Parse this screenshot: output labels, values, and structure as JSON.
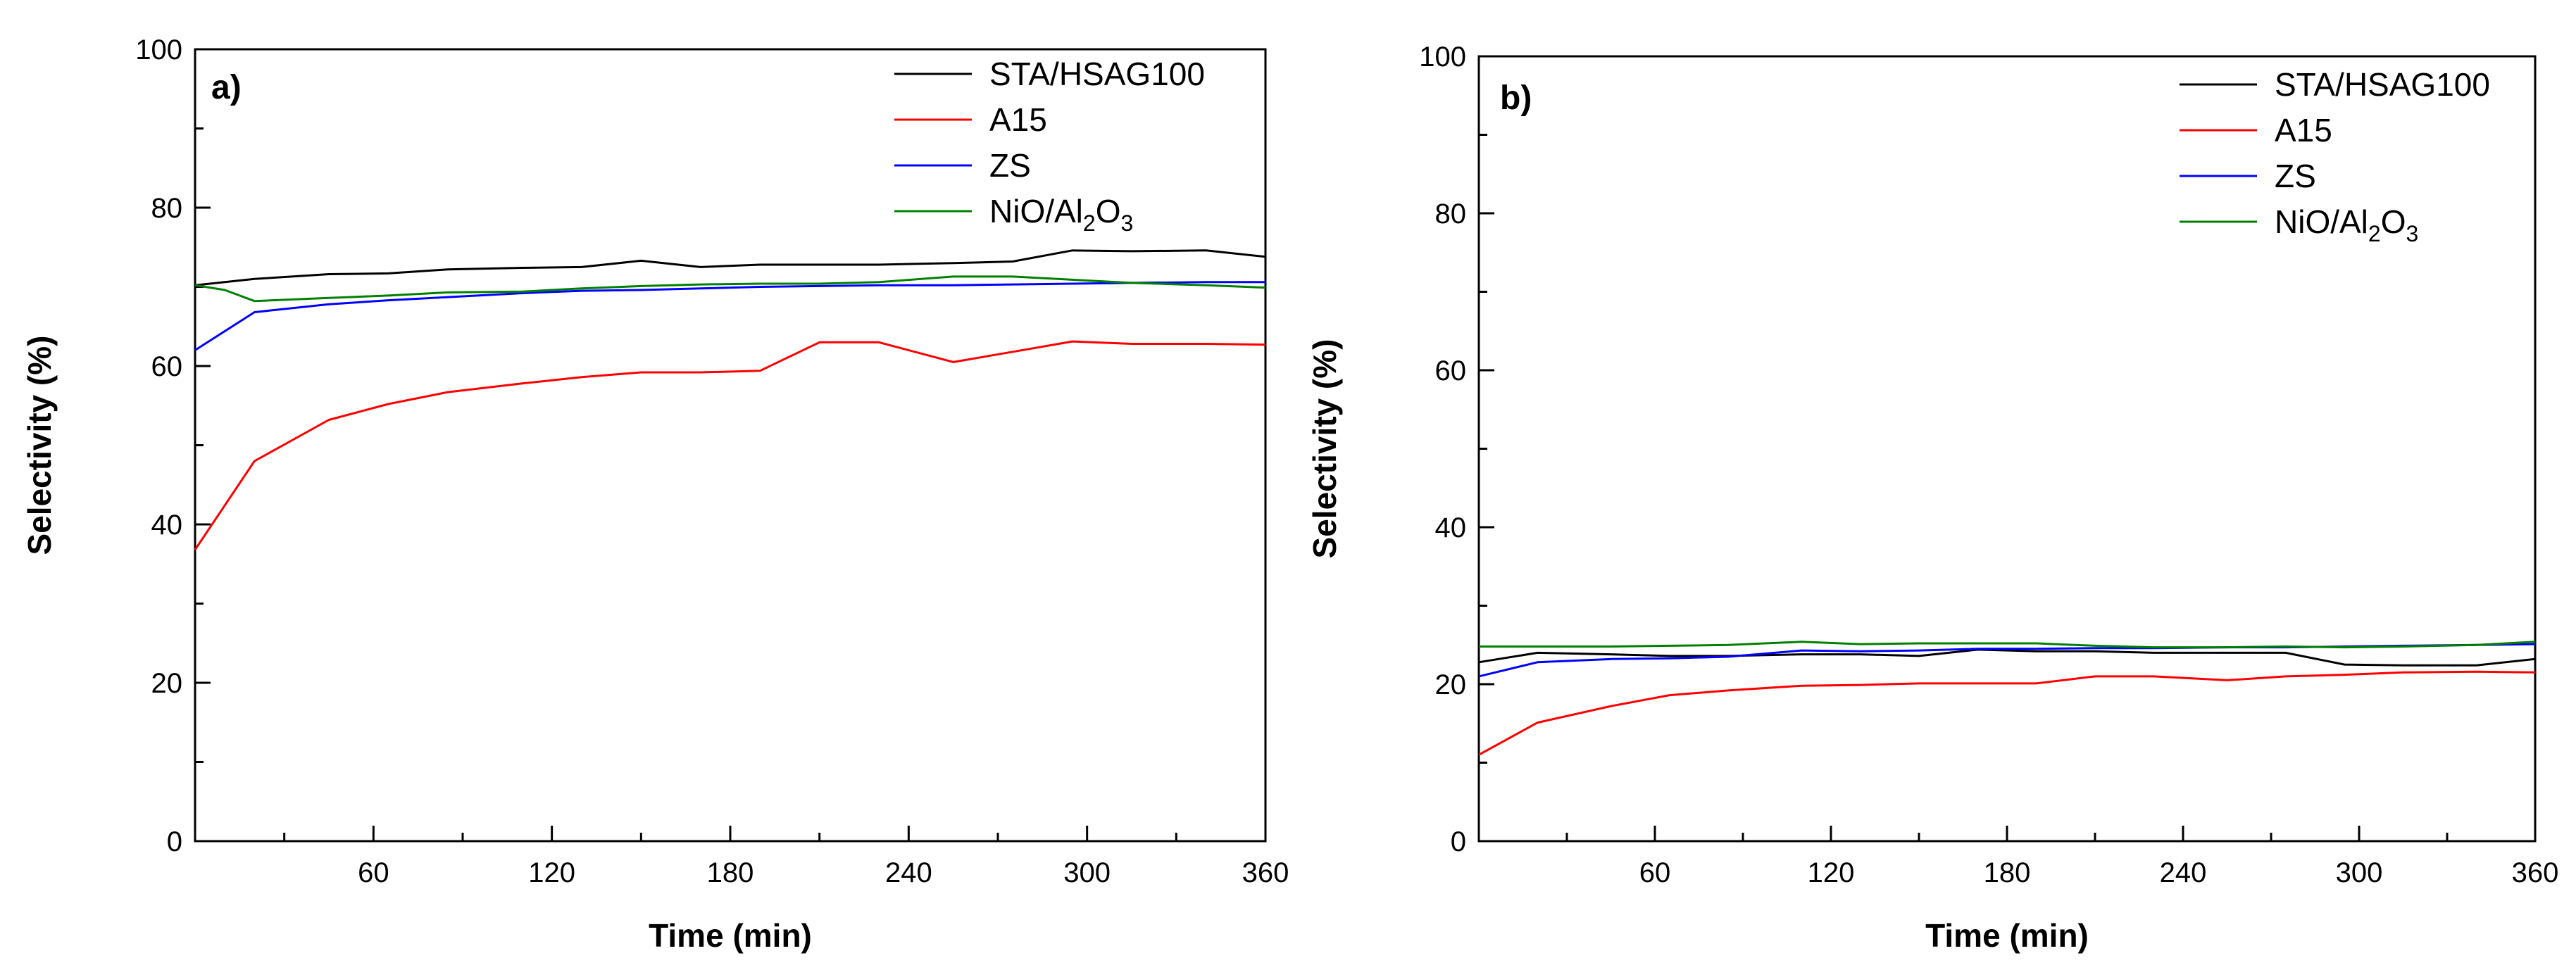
{
  "chart_data": [
    {
      "type": "line",
      "panel_label": "a)",
      "xlabel": "Time (min)",
      "ylabel": "Selectivity (%)",
      "xlim": [
        0,
        360
      ],
      "ylim": [
        0,
        100
      ],
      "xticks": [
        60,
        120,
        180,
        240,
        300,
        360
      ],
      "xtick_labels": [
        "60",
        "120",
        "180",
        "240",
        "300",
        "360"
      ],
      "yticks": [
        0,
        20,
        40,
        60,
        80,
        100
      ],
      "ytick_labels": [
        "0",
        "20",
        "40",
        "60",
        "80",
        "100"
      ],
      "legend_position": "top-right",
      "series": [
        {
          "name": "STA/HSAG100",
          "name_sub": "",
          "name_tail": "",
          "color": "#000000",
          "x": [
            0,
            20,
            45,
            65,
            85,
            110,
            130,
            150,
            170,
            190,
            210,
            230,
            255,
            275,
            295,
            315,
            340,
            360
          ],
          "y": [
            70.2,
            71.0,
            71.6,
            71.7,
            72.2,
            72.4,
            72.5,
            73.3,
            72.5,
            72.8,
            72.8,
            72.8,
            73.0,
            73.2,
            74.6,
            74.5,
            74.6,
            73.8
          ]
        },
        {
          "name": "A15",
          "name_sub": "",
          "name_tail": "",
          "color": "#ff0000",
          "x": [
            0,
            20,
            45,
            65,
            85,
            110,
            130,
            150,
            170,
            190,
            210,
            230,
            255,
            275,
            295,
            315,
            340,
            360
          ],
          "y": [
            36.8,
            48.0,
            53.2,
            55.2,
            56.7,
            57.8,
            58.6,
            59.2,
            59.2,
            59.4,
            63.0,
            63.0,
            60.5,
            61.8,
            63.1,
            62.8,
            62.8,
            62.7
          ]
        },
        {
          "name": "ZS",
          "name_sub": "",
          "name_tail": "",
          "color": "#0000ff",
          "x": [
            0,
            20,
            45,
            65,
            85,
            110,
            130,
            150,
            170,
            190,
            210,
            230,
            255,
            275,
            295,
            315,
            340,
            360
          ],
          "y": [
            62.0,
            66.8,
            67.8,
            68.3,
            68.7,
            69.2,
            69.5,
            69.6,
            69.8,
            70.0,
            70.1,
            70.2,
            70.2,
            70.3,
            70.4,
            70.5,
            70.6,
            70.6
          ]
        },
        {
          "name": "NiO/Al",
          "name_sub": "2",
          "name_tail": "O",
          "name_sub2": "3",
          "color": "#008000",
          "x": [
            0,
            10,
            20,
            45,
            65,
            85,
            110,
            130,
            150,
            170,
            190,
            210,
            230,
            255,
            275,
            295,
            315,
            340,
            360
          ],
          "y": [
            70.2,
            69.6,
            68.2,
            68.6,
            68.9,
            69.3,
            69.4,
            69.8,
            70.1,
            70.3,
            70.4,
            70.4,
            70.6,
            71.3,
            71.3,
            70.9,
            70.5,
            70.2,
            69.9
          ]
        }
      ]
    },
    {
      "type": "line",
      "panel_label": "b)",
      "xlabel": "Time (min)",
      "ylabel": "Selectivity (%)",
      "xlim": [
        0,
        360
      ],
      "ylim": [
        0,
        100
      ],
      "xticks": [
        60,
        120,
        180,
        240,
        300,
        360
      ],
      "xtick_labels": [
        "60",
        "120",
        "180",
        "240",
        "300",
        "360"
      ],
      "yticks": [
        0,
        20,
        40,
        60,
        80,
        100
      ],
      "ytick_labels": [
        "0",
        "20",
        "40",
        "60",
        "80",
        "100"
      ],
      "legend_position": "top-right",
      "series": [
        {
          "name": "STA/HSAG100",
          "name_sub": "",
          "name_tail": "",
          "color": "#000000",
          "x": [
            0,
            20,
            45,
            65,
            85,
            110,
            130,
            150,
            170,
            190,
            210,
            230,
            255,
            275,
            295,
            315,
            340,
            360
          ],
          "y": [
            22.8,
            24.0,
            23.8,
            23.6,
            23.6,
            23.8,
            23.8,
            23.6,
            24.4,
            24.2,
            24.2,
            24.0,
            24.0,
            24.0,
            22.5,
            22.4,
            22.4,
            23.2
          ]
        },
        {
          "name": "A15",
          "name_sub": "",
          "name_tail": "",
          "color": "#ff0000",
          "x": [
            0,
            20,
            45,
            65,
            85,
            110,
            130,
            150,
            170,
            190,
            210,
            230,
            255,
            275,
            295,
            315,
            340,
            360
          ],
          "y": [
            11.0,
            15.1,
            17.2,
            18.6,
            19.2,
            19.8,
            19.9,
            20.1,
            20.1,
            20.1,
            21.0,
            21.0,
            20.5,
            21.0,
            21.2,
            21.5,
            21.6,
            21.5
          ]
        },
        {
          "name": "ZS",
          "name_sub": "",
          "name_tail": "",
          "color": "#0000ff",
          "x": [
            0,
            20,
            45,
            65,
            85,
            110,
            130,
            150,
            170,
            190,
            210,
            230,
            255,
            275,
            295,
            315,
            340,
            360
          ],
          "y": [
            21.0,
            22.8,
            23.2,
            23.3,
            23.5,
            24.3,
            24.2,
            24.3,
            24.5,
            24.5,
            24.6,
            24.6,
            24.7,
            24.7,
            24.8,
            24.9,
            25.0,
            25.1
          ]
        },
        {
          "name": "NiO/Al",
          "name_sub": "2",
          "name_tail": "O",
          "name_sub2": "3",
          "color": "#008000",
          "x": [
            0,
            20,
            45,
            65,
            85,
            110,
            130,
            150,
            170,
            190,
            210,
            230,
            255,
            275,
            295,
            315,
            340,
            360
          ],
          "y": [
            24.8,
            24.8,
            24.8,
            24.9,
            25.0,
            25.4,
            25.1,
            25.2,
            25.2,
            25.2,
            24.9,
            24.7,
            24.7,
            24.8,
            24.7,
            24.8,
            25.0,
            25.4
          ]
        }
      ]
    }
  ]
}
